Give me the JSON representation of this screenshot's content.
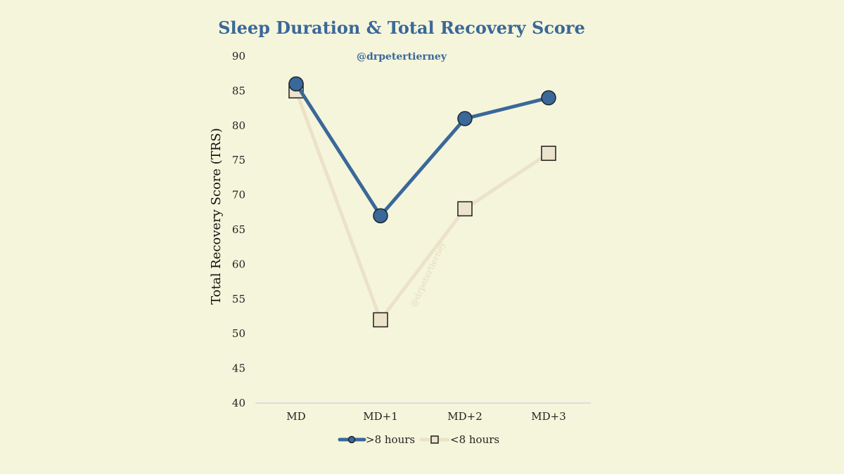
{
  "chart_data": {
    "type": "line",
    "title": "Sleep Duration & Total Recovery Score",
    "subtitle": "@drpetertierney",
    "watermark": "@drpetertierney",
    "xlabel": "",
    "ylabel": "Total Recovery Score (TRS)",
    "categories": [
      "MD",
      "MD+1",
      "MD+2",
      "MD+3"
    ],
    "ylim": [
      40,
      90
    ],
    "yticks": [
      40,
      45,
      50,
      55,
      60,
      65,
      70,
      75,
      80,
      85,
      90
    ],
    "grid": false,
    "legend": "bottom",
    "series": [
      {
        "name": ">8 hours",
        "values": [
          86,
          67,
          81,
          84
        ],
        "color": "#3a6898",
        "marker": "circle",
        "marker_fill": "#3a6898"
      },
      {
        "name": "<8 hours",
        "values": [
          85,
          52,
          68,
          76
        ],
        "color": "#ebe2c8",
        "marker": "square",
        "marker_fill": "#ece3cc"
      }
    ]
  }
}
